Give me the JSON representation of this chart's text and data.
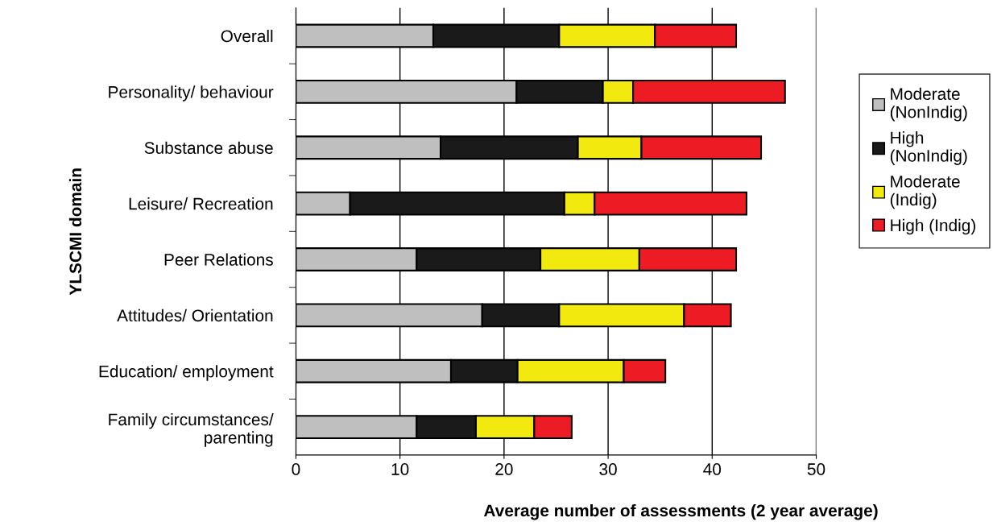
{
  "chart_data": {
    "type": "bar",
    "orientation": "horizontal",
    "stacked": true,
    "xlabel": "Average number of assessments (2 year average)",
    "ylabel": "YLSCMI domain",
    "categories": [
      "Overall",
      "Personality/ behaviour",
      "Substance abuse",
      "Leisure/ Recreation",
      "Peer Relations",
      "Attitudes/ Orientation",
      "Education/ employment",
      "Family circumstances/\nparenting"
    ],
    "series": [
      {
        "name": "Moderate\n(NonIndig)",
        "color": "#bfbfbf",
        "values": [
          13.2,
          21.2,
          13.9,
          5.2,
          11.6,
          17.9,
          14.9,
          11.6
        ]
      },
      {
        "name": "High\n(NonIndig)",
        "color": "#1a1a1a",
        "values": [
          12.1,
          8.3,
          13.2,
          20.6,
          11.9,
          7.4,
          6.4,
          5.7
        ]
      },
      {
        "name": "Moderate\n(Indig)",
        "color": "#f2e90f",
        "values": [
          9.2,
          2.9,
          6.1,
          2.9,
          9.5,
          12.0,
          10.2,
          5.6
        ]
      },
      {
        "name": "High (Indig)",
        "color": "#ed1c24",
        "values": [
          7.8,
          14.6,
          11.5,
          14.6,
          9.3,
          4.5,
          4.0,
          3.6
        ]
      }
    ],
    "xlim": [
      0,
      50
    ],
    "xticks": [
      0,
      10,
      20,
      30,
      40,
      50
    ],
    "grid": "x",
    "legend": "right"
  }
}
